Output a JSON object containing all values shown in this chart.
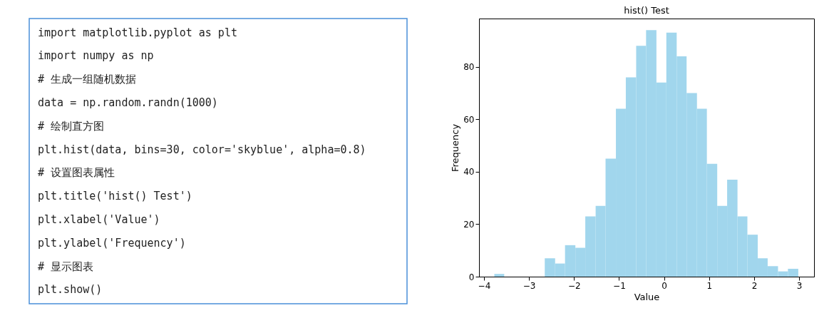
{
  "chart_data": [
    {
      "type": "other",
      "annotations": [
        "import matplotlib.pyplot as plt",
        "import numpy as np",
        "# 生成一组随机数据",
        "data = np.random.randn(1000)",
        "# 绘制直方图",
        "plt.hist(data, bins=30, color='skyblue', alpha=0.8)",
        "# 设置图表属性",
        "plt.title('hist() Test')",
        "plt.xlabel('Value')",
        "plt.ylabel('Frequency')",
        "# 显示图表",
        "plt.show()"
      ]
    },
    {
      "type": "histogram",
      "title": "hist() Test",
      "xlabel": "Value",
      "ylabel": "Frequency",
      "color": "#a1d6ed",
      "bins": [
        -3.77,
        -3.55,
        -2.65,
        -2.42,
        -2.2,
        -1.97,
        -1.75,
        -1.52,
        -1.3,
        -1.07,
        -0.85,
        -0.62,
        -0.4,
        -0.17,
        0.05,
        0.28,
        0.5,
        0.73,
        0.95,
        1.18,
        1.4,
        1.63,
        1.85,
        2.08,
        2.3,
        2.53,
        2.75,
        2.98
      ],
      "values": [
        1,
        0,
        7,
        5,
        12,
        11,
        23,
        27,
        45,
        64,
        76,
        88,
        94,
        74,
        93,
        84,
        70,
        64,
        43,
        27,
        37,
        23,
        16,
        7,
        4,
        2,
        3
      ],
      "xlim": [
        -4.11,
        3.33
      ],
      "xticks": [
        -4,
        -3,
        -2,
        -1,
        0,
        1,
        2,
        3
      ],
      "ylim": [
        0,
        98.4
      ],
      "yticks": [
        0,
        20,
        40,
        60,
        80
      ],
      "grid": false
    }
  ]
}
